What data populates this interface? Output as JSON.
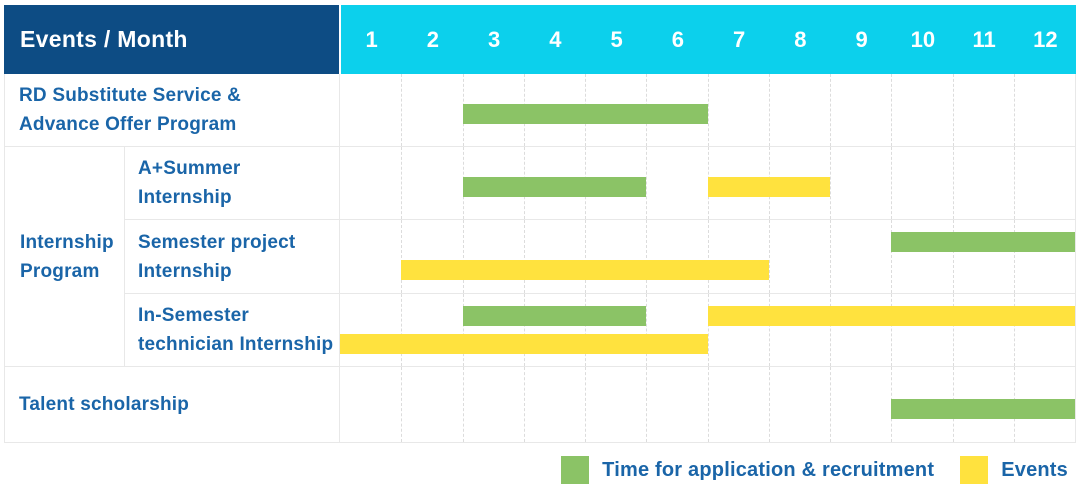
{
  "header": {
    "row_label": "Events / Month",
    "months": [
      "1",
      "2",
      "3",
      "4",
      "5",
      "6",
      "7",
      "8",
      "9",
      "10",
      "11",
      "12"
    ]
  },
  "group": {
    "label": "Internship Program",
    "label_lines": [
      "Internship",
      "Program"
    ]
  },
  "rows": [
    {
      "id": "rd-substitute-service",
      "label": "RD Substitute Service & Advance Offer Program",
      "label_lines": [
        "RD Substitute Service &",
        "Advance Offer Program"
      ],
      "group": "",
      "lines": 1,
      "bars": [
        {
          "color": "green",
          "start": 3,
          "end": 6,
          "line": 1
        }
      ]
    },
    {
      "id": "a-plus-summer-internship",
      "label": "A+Summer Internship",
      "label_lines": [
        "A+Summer",
        "Internship"
      ],
      "group": "Internship Program",
      "lines": 1,
      "bars": [
        {
          "color": "green",
          "start": 3,
          "end": 5,
          "line": 1
        },
        {
          "color": "yellow",
          "start": 7,
          "end": 8,
          "line": 1
        }
      ]
    },
    {
      "id": "semester-project-internship",
      "label": "Semester project Internship",
      "label_lines": [
        "Semester project",
        "Internship"
      ],
      "group": "Internship Program",
      "lines": 2,
      "bars": [
        {
          "color": "green",
          "start": 10,
          "end": 12,
          "line": 1
        },
        {
          "color": "yellow",
          "start": 2,
          "end": 7,
          "line": 2
        }
      ]
    },
    {
      "id": "in-semester-technician-internship",
      "label": "In-Semester technician Internship",
      "label_lines": [
        "In-Semester",
        "technician Internship"
      ],
      "group": "Internship Program",
      "lines": 2,
      "bars": [
        {
          "color": "green",
          "start": 3,
          "end": 5,
          "line": 1
        },
        {
          "color": "yellow",
          "start": 7,
          "end": 12,
          "line": 1
        },
        {
          "color": "yellow",
          "start": 1,
          "end": 6,
          "line": 2
        }
      ]
    },
    {
      "id": "talent-scholarship",
      "label": "Talent scholarship",
      "label_lines": [
        "Talent scholarship"
      ],
      "group": "",
      "lines": 1,
      "bars": [
        {
          "color": "green",
          "start": 10,
          "end": 12,
          "line": 1
        }
      ]
    }
  ],
  "legend": [
    {
      "key": "green",
      "label": "Time for application & recruitment"
    },
    {
      "key": "yellow",
      "label": "Events"
    }
  ],
  "colors": {
    "header_bg": "#0D4C84",
    "header_text": "#FFFFFF",
    "months_bg": "#0CD0EC",
    "label_text": "#1A65A8",
    "bar_green": "#8BC366",
    "bar_yellow": "#FFE23E",
    "grid_line": "#E8E8E8",
    "column_line": "#DCDCDC"
  },
  "chart_data": {
    "type": "gantt",
    "title": "Events / Month",
    "xlabel": "Month",
    "x_ticks": [
      1,
      2,
      3,
      4,
      5,
      6,
      7,
      8,
      9,
      10,
      11,
      12
    ],
    "x_range": [
      1,
      12
    ],
    "grid": true,
    "legend_position": "bottom-right",
    "series": [
      {
        "name": "Time for application & recruitment",
        "color": "#8BC366"
      },
      {
        "name": "Events",
        "color": "#FFE23E"
      }
    ],
    "rows": [
      {
        "event": "RD Substitute Service & Advance Offer Program",
        "group": null,
        "bars": [
          {
            "series": "Time for application & recruitment",
            "start_month": 3,
            "end_month": 6
          }
        ]
      },
      {
        "event": "A+Summer Internship",
        "group": "Internship Program",
        "bars": [
          {
            "series": "Time for application & recruitment",
            "start_month": 3,
            "end_month": 5
          },
          {
            "series": "Events",
            "start_month": 7,
            "end_month": 8
          }
        ]
      },
      {
        "event": "Semester project Internship",
        "group": "Internship Program",
        "bars": [
          {
            "series": "Time for application & recruitment",
            "start_month": 10,
            "end_month": 12
          },
          {
            "series": "Events",
            "start_month": 2,
            "end_month": 7
          }
        ]
      },
      {
        "event": "In-Semester technician Internship",
        "group": "Internship Program",
        "bars": [
          {
            "series": "Time for application & recruitment",
            "start_month": 3,
            "end_month": 5
          },
          {
            "series": "Events",
            "start_month": 7,
            "end_month": 12
          },
          {
            "series": "Events",
            "start_month": 1,
            "end_month": 6
          }
        ]
      },
      {
        "event": "Talent scholarship",
        "group": null,
        "bars": [
          {
            "series": "Time for application & recruitment",
            "start_month": 10,
            "end_month": 12
          }
        ]
      }
    ]
  }
}
